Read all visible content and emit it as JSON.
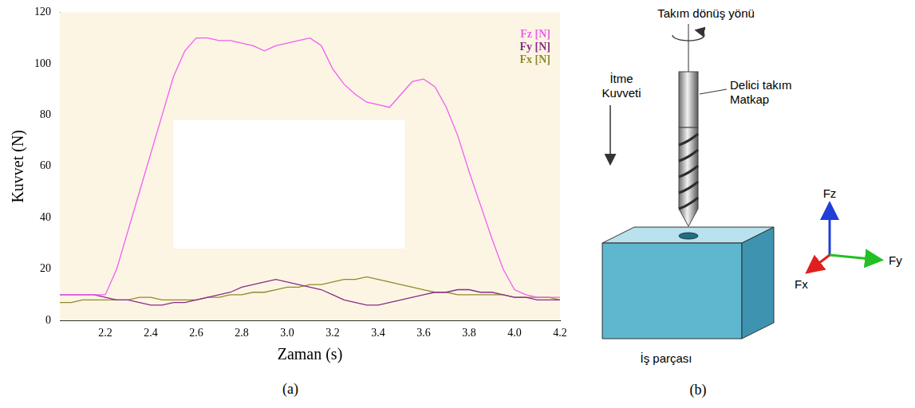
{
  "chart_data": {
    "type": "line",
    "x_label": "Zaman (s)",
    "y_label": "Kuvvet (N)",
    "x": [
      2.0,
      2.05,
      2.1,
      2.15,
      2.2,
      2.25,
      2.3,
      2.35,
      2.4,
      2.45,
      2.5,
      2.55,
      2.6,
      2.65,
      2.7,
      2.75,
      2.8,
      2.85,
      2.9,
      2.95,
      3.0,
      3.05,
      3.1,
      3.15,
      3.2,
      3.25,
      3.3,
      3.35,
      3.4,
      3.45,
      3.5,
      3.55,
      3.6,
      3.65,
      3.7,
      3.75,
      3.8,
      3.85,
      3.9,
      3.95,
      4.0,
      4.05,
      4.1,
      4.15,
      4.2
    ],
    "series": [
      {
        "name": "Fz [N]",
        "color": "#f25cf2",
        "values": [
          10,
          10,
          10,
          10,
          10,
          20,
          35,
          50,
          65,
          80,
          95,
          105,
          110,
          110,
          109,
          109,
          108,
          107,
          105,
          107,
          108,
          109,
          110,
          107,
          98,
          92,
          88,
          85,
          84,
          83,
          88,
          93,
          94,
          91,
          83,
          72,
          58,
          45,
          32,
          20,
          12,
          10,
          9,
          9,
          9
        ]
      },
      {
        "name": "Fy [N]",
        "color": "#8a2b8a",
        "values": [
          10,
          10,
          10,
          10,
          9,
          8,
          8,
          7,
          6,
          6,
          7,
          7,
          8,
          9,
          10,
          11,
          13,
          14,
          15,
          16,
          15,
          14,
          13,
          12,
          10,
          8,
          7,
          6,
          6,
          7,
          8,
          9,
          10,
          11,
          11,
          12,
          12,
          11,
          11,
          10,
          9,
          9,
          8,
          8,
          8
        ]
      },
      {
        "name": "Fx [N]",
        "color": "#8f8a2e",
        "values": [
          7,
          7,
          8,
          8,
          8,
          8,
          8,
          9,
          9,
          8,
          8,
          8,
          8,
          9,
          9,
          10,
          10,
          11,
          11,
          12,
          13,
          13,
          14,
          14,
          15,
          16,
          16,
          17,
          16,
          15,
          14,
          13,
          12,
          11,
          11,
          10,
          10,
          10,
          10,
          10,
          9,
          9,
          9,
          9,
          8
        ]
      }
    ],
    "xlim": [
      2.0,
      4.2
    ],
    "xticks": [
      2.2,
      2.4,
      2.6,
      2.8,
      {
        "value": 3,
        "label": "3.0"
      },
      3.2,
      3.4,
      3.6,
      3.8,
      {
        "value": 4,
        "label": "4.0"
      },
      4.2
    ],
    "ylim": [
      0,
      120
    ],
    "yticks": [
      0,
      20,
      40,
      60,
      80,
      100,
      120
    ],
    "grid": false,
    "legend": "upper right"
  },
  "panel_labels": [
    "(a)",
    "(b)"
  ],
  "diagram": {
    "rotation_label": "Takım dönüş yönü",
    "tool_label": [
      "Delici takım",
      "Matkap"
    ],
    "thrust_label": [
      "İtme",
      "Kuvveti"
    ],
    "workpiece_label": "İş parçası",
    "axes": {
      "z": "Fz",
      "y": "Fy",
      "x": "Fx"
    }
  }
}
